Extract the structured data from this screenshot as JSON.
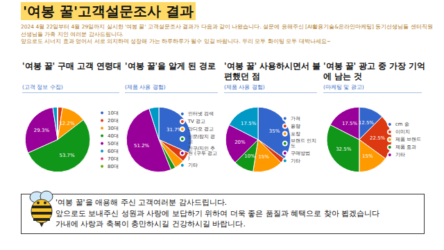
{
  "header": {
    "title": "'여봉 꿀'고객설문조사 결과",
    "paragraph": [
      "2024 4월 22일부터 4월 29일까지 실시한 '여봉 꿀' 고객설문조사 결과가 다음과 같이 나왔습니다. 설문에 응해주신 [AI활용기술&온라인마케팅] 동기선생님들 센터직원 선생님들 가족 지인 여러분 감사드립니다.",
      "앞으로도 시너지 효과 얻어서 서로 의지하며 성장해 가는 하루하루가 될수 있길 바랍니다. 우리 모두 화이팅 모두 대박나세요~"
    ]
  },
  "chart_data": [
    {
      "type": "pie",
      "title": "'여봉 꿀' 구매 고객 연령대",
      "subtitle": "(고객 정보 수집)",
      "categories": [
        "10대",
        "20대",
        "30대",
        "40대",
        "50대",
        "60대",
        "70대",
        "80대"
      ],
      "values": [
        0,
        2.4,
        12.2,
        53.7,
        29.3,
        2.4,
        0,
        0
      ],
      "value_labels": [
        null,
        null,
        "12.2%",
        "53.7%",
        "29.3%",
        null,
        null,
        null
      ],
      "colors": [
        "#3366cc",
        "#dc3912",
        "#ff9900",
        "#109618",
        "#990099",
        "#0099c6",
        "#dd4477",
        "#66aa00"
      ],
      "data_labels": true,
      "legend": "right"
    },
    {
      "type": "pie",
      "title": "'여봉 꿀'을 알게 된 경로",
      "subtitle": "(제품 사용 경험)",
      "categories": [
        "인터넷 검색",
        "TV 광고",
        "라디오 광고",
        "신문/잡지 광고",
        "친구/지인 추천 (구두 광고)",
        "기타"
      ],
      "values": [
        31.7,
        4.9,
        4.9,
        2.4,
        51.2,
        4.9
      ],
      "value_labels": [
        "31.7%",
        null,
        null,
        null,
        "51.2%",
        null
      ],
      "colors": [
        "#3366cc",
        "#dc3912",
        "#ff9900",
        "#109618",
        "#990099",
        "#0099c6"
      ],
      "data_labels": true,
      "legend": "right"
    },
    {
      "type": "pie",
      "title": "'여봉 꿀' 사용하시면서 불편했던 점",
      "subtitle": "(제품 사용 경험)",
      "categories": [
        "가격",
        "용량",
        "포장",
        "브랜드 인지도",
        "구매방법",
        "기타"
      ],
      "values": [
        35,
        2.5,
        15,
        10,
        20,
        17.5
      ],
      "value_labels": [
        "35%",
        null,
        "15%",
        "10%",
        "20%",
        "17.5%"
      ],
      "colors": [
        "#3366cc",
        "#dc3912",
        "#ff9900",
        "#109618",
        "#990099",
        "#0099c6"
      ],
      "data_labels": true,
      "legend": "right"
    },
    {
      "type": "pie",
      "title": "'여봉 꿀' 광고 중 가장 기억에 남는 것",
      "subtitle": "(마케팅 및 광고)",
      "categories": [
        "cm 송",
        "이미지",
        "제품 브랜드",
        "제품 효과",
        "기타"
      ],
      "values": [
        12.5,
        22.5,
        15,
        32.5,
        17.5
      ],
      "value_labels": [
        "12.5%",
        "22.5%",
        "15%",
        "32.5%",
        "17.5%"
      ],
      "colors": [
        "#3366cc",
        "#dc3912",
        "#ff9900",
        "#109618",
        "#990099"
      ],
      "data_labels": true,
      "legend": "right"
    }
  ],
  "footer": {
    "lines": [
      "'여봉 꿀'을 애용해 주신 고객여러분 감사드립니다.",
      "앞으로도 보내주신 성원과 사랑에 보답하기 위하여 더욱 좋은 품질과 혜택으로 찾아 뵙겠습니다",
      "가내에 사랑과 축복이 충만하시길 건강하시길 바랍니다."
    ]
  }
}
